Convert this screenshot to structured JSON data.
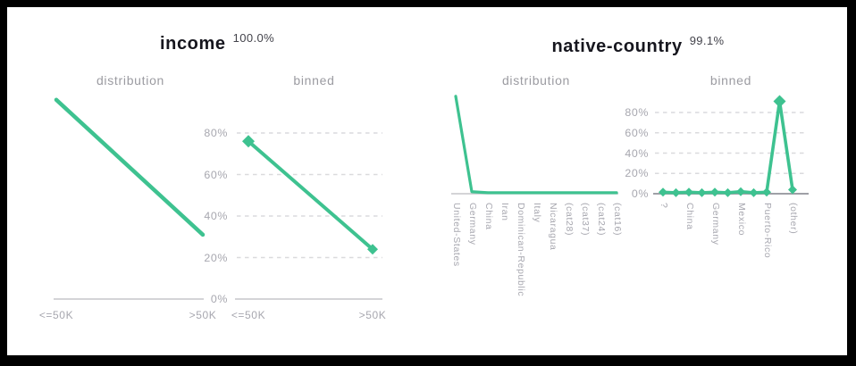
{
  "colors": {
    "accent": "#3ec290",
    "grid_dash": "#dadadd",
    "axis_light": "#c5c5ca",
    "axis_dark": "#9fa0a6",
    "label_gray": "#a7a7af"
  },
  "panels": [
    {
      "id": "income",
      "title": "income",
      "completeness": "100.0%",
      "distribution_header": "distribution",
      "binned_header": "binned",
      "y_ticks": [
        "80%",
        "60%",
        "40%",
        "20%",
        "0%"
      ]
    },
    {
      "id": "native-country",
      "title": "native-country",
      "completeness": "99.1%",
      "distribution_header": "distribution",
      "binned_header": "binned",
      "y_ticks": [
        "80%",
        "60%",
        "40%",
        "20%",
        "0%"
      ]
    }
  ],
  "chart_data": [
    {
      "panel": "income",
      "subchart": "distribution",
      "type": "line",
      "categories": [
        "<=50K",
        ">50K"
      ],
      "values": [
        96,
        31
      ],
      "ylim": [
        0,
        100
      ],
      "grid": false,
      "markers": false
    },
    {
      "panel": "income",
      "subchart": "binned",
      "type": "line",
      "categories": [
        "<=50K",
        ">50K"
      ],
      "values": [
        76,
        24
      ],
      "ylim": [
        0,
        100
      ],
      "yticks": [
        80,
        60,
        40,
        20,
        0
      ],
      "grid": true,
      "markers": true
    },
    {
      "panel": "native-country",
      "subchart": "distribution",
      "type": "line",
      "categories": [
        "United-States",
        "Germany",
        "China",
        "Iran",
        "Dominican-Republic",
        "Italy",
        "Nicaragua",
        "(cat28)",
        "(cat37)",
        "(cat24)",
        "(cat16)"
      ],
      "values": [
        96,
        2,
        1,
        1,
        1,
        1,
        1,
        1,
        1,
        1,
        1
      ],
      "ylim": [
        0,
        100
      ],
      "grid": false,
      "markers": false
    },
    {
      "panel": "native-country",
      "subchart": "binned",
      "type": "line",
      "categories": [
        "?",
        "",
        "China",
        "",
        "Germany",
        "",
        "Mexico",
        "",
        "Puerto-Rico",
        "",
        "(other)"
      ],
      "values": [
        1.5,
        1,
        1.5,
        1,
        1.5,
        1,
        2,
        1,
        1.5,
        91,
        4
      ],
      "ylim": [
        0,
        100
      ],
      "yticks": [
        80,
        60,
        40,
        20,
        0
      ],
      "grid": true,
      "markers": true
    }
  ]
}
